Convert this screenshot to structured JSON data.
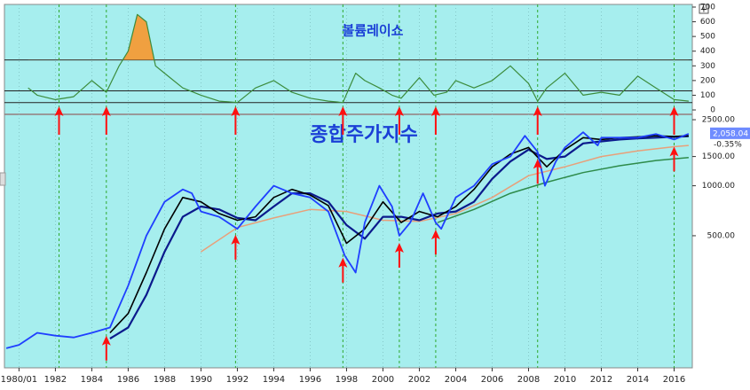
{
  "chart_data": [
    {
      "type": "line",
      "title": "볼륨레이쇼",
      "xlim": [
        1979.2,
        2017.0
      ],
      "ylim": [
        -24,
        718
      ],
      "yticks": [
        0,
        100,
        200,
        300,
        400,
        500,
        600,
        700
      ],
      "hlines": [
        50,
        130,
        340
      ],
      "fill_above": 340,
      "fill_color": "#f0a040",
      "markers": [
        1982.2,
        1984.8,
        1991.9,
        1997.8,
        2000.9,
        2002.9,
        2008.5,
        2016.0
      ],
      "series": [
        {
          "color": "#3c8c3c",
          "x": [
            1980.5,
            1981,
            1982,
            1983,
            1984,
            1984.8,
            1985.5,
            1986,
            1986.5,
            1987,
            1987.5,
            1988,
            1989,
            1990,
            1991,
            1992,
            1993,
            1994,
            1995,
            1996,
            1997,
            1997.8,
            1998.5,
            1999,
            1999.8,
            2000.5,
            2001,
            2002,
            2002.8,
            2003.5,
            2004,
            2005,
            2006,
            2007,
            2008,
            2008.5,
            2009,
            2010,
            2011,
            2012,
            2013,
            2014,
            2015,
            2016,
            2016.8
          ],
          "values": [
            150,
            100,
            70,
            90,
            200,
            120,
            300,
            400,
            650,
            600,
            300,
            250,
            150,
            100,
            60,
            50,
            150,
            200,
            120,
            80,
            60,
            50,
            250,
            200,
            150,
            100,
            80,
            220,
            100,
            120,
            200,
            150,
            200,
            300,
            180,
            60,
            150,
            250,
            100,
            120,
            100,
            230,
            150,
            70,
            60
          ]
        }
      ]
    },
    {
      "type": "line",
      "title": "종합주가지수",
      "log": true,
      "xlim": [
        1979.2,
        2017.0
      ],
      "ylim": [
        80,
        2660
      ],
      "xticks": [
        {
          "value": 1980,
          "label": "1980/01"
        },
        1982,
        1984,
        1986,
        1988,
        1990,
        1992,
        1994,
        1996,
        1998,
        2000,
        2002,
        2004,
        2006,
        2008,
        2010,
        2012,
        2014,
        2016
      ],
      "yticks": [
        {
          "value": 2500,
          "label": "2500.00"
        },
        {
          "value": 1500,
          "label": "1500.00"
        },
        {
          "value": 1000,
          "label": "1000.00"
        },
        {
          "value": 500,
          "label": "500.00"
        }
      ],
      "last_value": {
        "value": 2058.04,
        "label": "2,058.04"
      },
      "change": {
        "value": -0.35,
        "label": "-0.35%"
      },
      "markers": [
        1984.8,
        1991.9,
        1997.8,
        2000.9,
        2002.9,
        2008.5,
        2016.0
      ],
      "series": [
        {
          "color": "#1f3fff",
          "width": 1.8,
          "x": [
            1979.3,
            1980,
            1981,
            1982,
            1983,
            1984,
            1985,
            1986,
            1987,
            1988,
            1989,
            1989.5,
            1990,
            1991,
            1992,
            1993,
            1994,
            1995,
            1996,
            1997,
            1997.9,
            1998.5,
            1999,
            1999.8,
            2000.5,
            2000.9,
            2001.5,
            2002.2,
            2002.9,
            2003.2,
            2004,
            2005,
            2006,
            2007,
            2007.8,
            2008.5,
            2008.9,
            2009.5,
            2010,
            2011,
            2011.8,
            2012,
            2013,
            2014,
            2015,
            2016,
            2016.8
          ],
          "values": [
            105,
            110,
            130,
            125,
            122,
            130,
            140,
            250,
            500,
            800,
            950,
            900,
            700,
            650,
            550,
            750,
            1000,
            900,
            850,
            700,
            380,
            300,
            600,
            1000,
            750,
            500,
            600,
            900,
            600,
            550,
            850,
            1000,
            1350,
            1500,
            2000,
            1600,
            1000,
            1400,
            1700,
            2100,
            1750,
            1950,
            1950,
            1950,
            2050,
            1900,
            2058.04
          ]
        },
        {
          "color": "#000000",
          "width": 1.6,
          "x": [
            1985,
            1986,
            1987,
            1988,
            1989,
            1990,
            1991,
            1992,
            1993,
            1994,
            1995,
            1996,
            1997,
            1998,
            1999,
            2000,
            2001,
            2002,
            2003,
            2004,
            2005,
            2006,
            2007,
            2008,
            2009,
            2010,
            2011,
            2012,
            2013,
            2014,
            2015,
            2016,
            2016.8
          ],
          "values": [
            130,
            170,
            300,
            550,
            850,
            800,
            680,
            620,
            650,
            850,
            950,
            880,
            760,
            450,
            550,
            800,
            600,
            700,
            650,
            750,
            950,
            1300,
            1550,
            1700,
            1300,
            1650,
            1950,
            1900,
            1950,
            1970,
            2000,
            1980,
            2000
          ]
        },
        {
          "color": "#0b1a8c",
          "width": 2.2,
          "x": [
            1985,
            1986,
            1987,
            1988,
            1989,
            1990,
            1991,
            1992,
            1993,
            1994,
            1995,
            1996,
            1997,
            1998,
            1999,
            2000,
            2001,
            2002,
            2003,
            2004,
            2005,
            2006,
            2007,
            2008,
            2009,
            2010,
            2011,
            2012,
            2013,
            2014,
            2015,
            2016,
            2016.8
          ],
          "values": [
            120,
            140,
            220,
            400,
            650,
            750,
            720,
            640,
            620,
            750,
            900,
            900,
            800,
            580,
            480,
            650,
            650,
            620,
            680,
            700,
            800,
            1100,
            1400,
            1650,
            1450,
            1500,
            1800,
            1850,
            1900,
            1930,
            1950,
            1970,
            1990
          ]
        },
        {
          "color": "#e8a07a",
          "width": 1.5,
          "x": [
            1990,
            1992,
            1994,
            1996,
            1998,
            2000,
            2002,
            2004,
            2006,
            2008,
            2010,
            2012,
            2014,
            2016,
            2016.8
          ],
          "values": [
            400,
            560,
            640,
            720,
            700,
            620,
            610,
            680,
            850,
            1150,
            1300,
            1500,
            1620,
            1720,
            1750
          ]
        },
        {
          "color": "#2e8b4a",
          "width": 1.5,
          "x": [
            2003,
            2005,
            2007,
            2009,
            2011,
            2013,
            2015,
            2016.8
          ],
          "values": [
            600,
            720,
            900,
            1050,
            1200,
            1320,
            1420,
            1480
          ]
        }
      ]
    }
  ]
}
